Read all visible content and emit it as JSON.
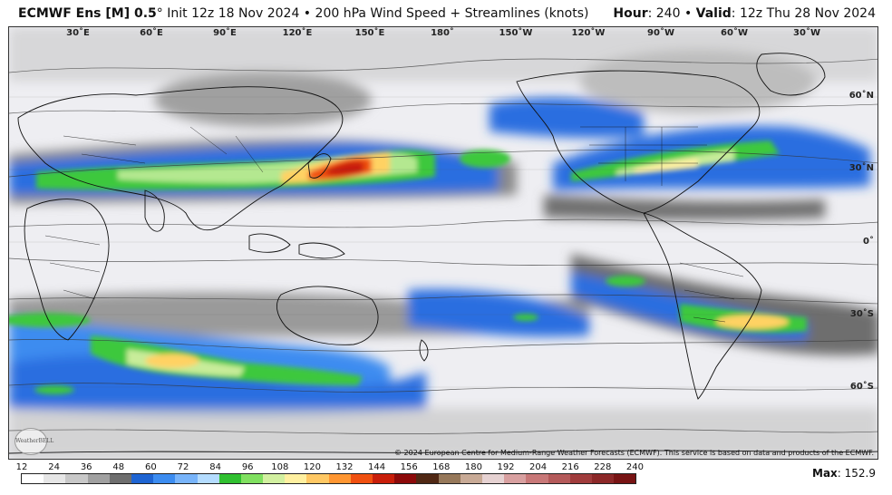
{
  "header": {
    "model": "ECMWF Ens [M] 0.5",
    "degree": "°",
    "init": " Init 12z 18 Nov 2024",
    "bullet": " • ",
    "product": "200 hPa Wind Speed + Streamlines (knots)",
    "hour_label": "Hour",
    "hour_value": ": 240 • ",
    "valid_label": "Valid",
    "valid_value": ": 12z Thu 28 Nov 2024"
  },
  "map": {
    "lon_labels": [
      "30˚E",
      "60˚E",
      "90˚E",
      "120˚E",
      "150˚E",
      "180˚",
      "150˚W",
      "120˚W",
      "90˚W",
      "60˚W",
      "30˚W"
    ],
    "lat_labels": [
      "60˚N",
      "30˚N",
      "0˚",
      "30˚S",
      "60˚S"
    ],
    "copyright": "© 2024 European Centre for Medium-Range Weather Forecasts (ECMWF). This service is based on data and products of the ECMWF.",
    "logo_text": "WeatherBELL"
  },
  "colorbar": {
    "ticks": [
      "12",
      "24",
      "36",
      "48",
      "60",
      "72",
      "84",
      "96",
      "108",
      "120",
      "132",
      "144",
      "156",
      "168",
      "180",
      "192",
      "204",
      "216",
      "228",
      "240"
    ],
    "colors": [
      "#ffffff",
      "#e6e6e6",
      "#c8c8c8",
      "#a0a0a0",
      "#6e6e6e",
      "#1e64d2",
      "#3c8cf0",
      "#78b4fa",
      "#b4dcff",
      "#30c030",
      "#80e060",
      "#d2f0a0",
      "#fff0a0",
      "#ffc864",
      "#ff9632",
      "#f05010",
      "#c81e0a",
      "#8c0a0a",
      "#502814",
      "#96785a",
      "#c8aa96",
      "#e6d2d2",
      "#d8a0a0",
      "#c87878",
      "#b45a5a",
      "#a03c3c",
      "#8c2828",
      "#781414"
    ]
  },
  "max": {
    "label": "Max",
    "value": ": 152.9"
  }
}
